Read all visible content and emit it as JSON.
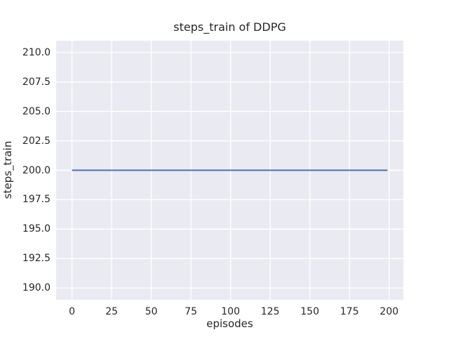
{
  "chart_data": {
    "type": "line",
    "title": "steps_train of DDPG",
    "xlabel": "episodes",
    "ylabel": "steps_train",
    "xlim": [
      -10,
      209
    ],
    "ylim": [
      189,
      211
    ],
    "xticks": [
      0,
      25,
      50,
      75,
      100,
      125,
      150,
      175,
      200
    ],
    "xtick_labels": [
      "0",
      "25",
      "50",
      "75",
      "100",
      "125",
      "150",
      "175",
      "200"
    ],
    "yticks": [
      190,
      192.5,
      195,
      197.5,
      200,
      202.5,
      205,
      207.5,
      210
    ],
    "ytick_labels": [
      "190.0",
      "192.5",
      "195.0",
      "197.5",
      "200.0",
      "202.5",
      "205.0",
      "207.5",
      "210.0"
    ],
    "grid": true,
    "legend": false,
    "series": [
      {
        "name": "steps_train",
        "color": "#4c72b0",
        "x": [
          0,
          199
        ],
        "y": [
          200,
          200
        ],
        "description": "constant value of 200 steps per episode from episode 0 to 199"
      }
    ],
    "colors": {
      "figure_bg": "#ffffff",
      "axes_bg": "#eaeaf2",
      "grid": "#ffffff",
      "text": "#262626"
    }
  }
}
